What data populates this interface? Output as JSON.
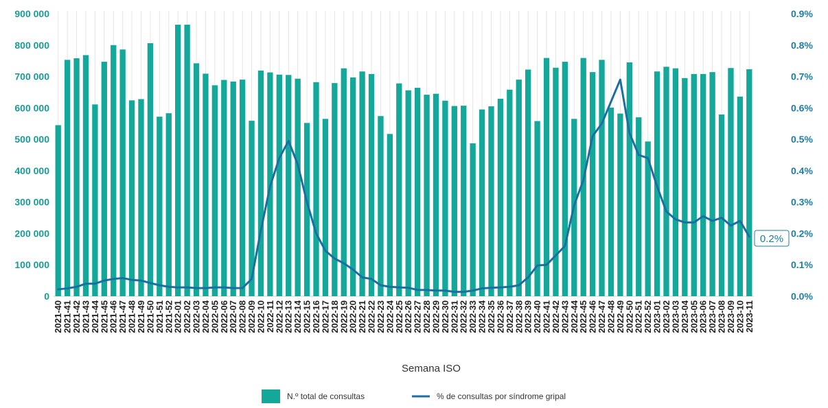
{
  "chart_data": {
    "type": "bar+line",
    "xlabel": "Semana ISO",
    "left_axis": {
      "ylim": [
        0,
        900000
      ],
      "ticks": [
        "0",
        "100 000",
        "200 000",
        "300 000",
        "400 000",
        "500 000",
        "600 000",
        "700 000",
        "800 000",
        "900 000"
      ]
    },
    "right_axis": {
      "ylim": [
        0,
        0.9
      ],
      "ticks": [
        "0.0%",
        "0.1%",
        "0.2%",
        "0.3%",
        "0.4%",
        "0.5%",
        "0.6%",
        "0.7%",
        "0.8%",
        "0.9%"
      ]
    },
    "categories": [
      "2021-40",
      "2021-41",
      "2021-42",
      "2021-43",
      "2021-44",
      "2021-45",
      "2021-46",
      "2021-47",
      "2021-48",
      "2021-49",
      "2021-50",
      "2021-51",
      "2021-52",
      "2022-01",
      "2022-02",
      "2022-03",
      "2022-04",
      "2022-05",
      "2022-06",
      "2022-07",
      "2022-08",
      "2022-09",
      "2022-10",
      "2022-11",
      "2022-12",
      "2022-13",
      "2022-14",
      "2022-15",
      "2022-16",
      "2022-17",
      "2022-18",
      "2022-19",
      "2022-20",
      "2022-21",
      "2022-22",
      "2022-23",
      "2022-24",
      "2022-25",
      "2022-26",
      "2022-27",
      "2022-28",
      "2022-29",
      "2022-30",
      "2022-31",
      "2022-32",
      "2022-33",
      "2022-34",
      "2022-35",
      "2022-36",
      "2022-37",
      "2022-38",
      "2022-39",
      "2022-40",
      "2022-41",
      "2022-42",
      "2022-43",
      "2022-44",
      "2022-45",
      "2022-46",
      "2022-47",
      "2022-48",
      "2022-49",
      "2022-50",
      "2022-51",
      "2022-52",
      "2023-01",
      "2023-02",
      "2023-03",
      "2023-04",
      "2023-05",
      "2023-06",
      "2023-07",
      "2023-08",
      "2023-09",
      "2023-10",
      "2023-11"
    ],
    "series": [
      {
        "name": "N.º total de consultas",
        "type": "bar",
        "axis": "left",
        "color": "#14a89a",
        "values": [
          545000,
          753000,
          758000,
          768000,
          611000,
          747000,
          800000,
          786000,
          624000,
          628000,
          806000,
          572000,
          583000,
          865000,
          865000,
          742000,
          709000,
          672000,
          689000,
          684000,
          690000,
          559000,
          719000,
          713000,
          706000,
          705000,
          693000,
          552000,
          682000,
          565000,
          679000,
          726000,
          697000,
          716000,
          708000,
          574000,
          517000,
          678000,
          656000,
          664000,
          642000,
          645000,
          623000,
          606000,
          607000,
          487000,
          595000,
          605000,
          629000,
          658000,
          690000,
          722000,
          558000,
          759000,
          728000,
          747000,
          565000,
          759000,
          714000,
          753000,
          601000,
          582000,
          745000,
          570000,
          493000,
          716000,
          731000,
          726000,
          695000,
          708000,
          708000,
          714000,
          579000,
          727000,
          636000,
          723000
        ]
      },
      {
        "name": "% de consultas por síndrome gripal",
        "type": "line",
        "axis": "right",
        "color": "#1b6fa0",
        "values": [
          0.022,
          0.025,
          0.03,
          0.04,
          0.04,
          0.05,
          0.055,
          0.058,
          0.052,
          0.05,
          0.042,
          0.035,
          0.03,
          0.028,
          0.028,
          0.026,
          0.026,
          0.028,
          0.028,
          0.026,
          0.026,
          0.055,
          0.21,
          0.35,
          0.44,
          0.495,
          0.42,
          0.3,
          0.2,
          0.145,
          0.12,
          0.105,
          0.085,
          0.06,
          0.055,
          0.035,
          0.03,
          0.028,
          0.027,
          0.02,
          0.02,
          0.018,
          0.018,
          0.014,
          0.014,
          0.018,
          0.025,
          0.027,
          0.028,
          0.03,
          0.035,
          0.06,
          0.098,
          0.1,
          0.13,
          0.16,
          0.29,
          0.37,
          0.51,
          0.55,
          0.62,
          0.69,
          0.52,
          0.45,
          0.44,
          0.35,
          0.27,
          0.245,
          0.235,
          0.235,
          0.255,
          0.24,
          0.25,
          0.225,
          0.24,
          0.19
        ]
      }
    ],
    "callout": "0.2%",
    "legend": {
      "position": "bottom-center",
      "items": [
        "N.º total de consultas",
        "% de consultas por síndrome gripal"
      ]
    },
    "grid": "vertical"
  }
}
